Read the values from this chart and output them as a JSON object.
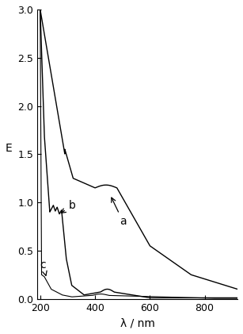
{
  "title": "",
  "xlabel": "λ / nm",
  "ylabel": "E",
  "xlim": [
    190,
    920
  ],
  "ylim": [
    0.0,
    3.0
  ],
  "xticks": [
    200,
    400,
    600,
    800
  ],
  "yticks": [
    0.0,
    0.5,
    1.0,
    1.5,
    2.0,
    2.5,
    3.0
  ],
  "background_color": "#ffffff",
  "line_color": "#000000",
  "figsize": [
    3.07,
    4.21
  ],
  "dpi": 100
}
